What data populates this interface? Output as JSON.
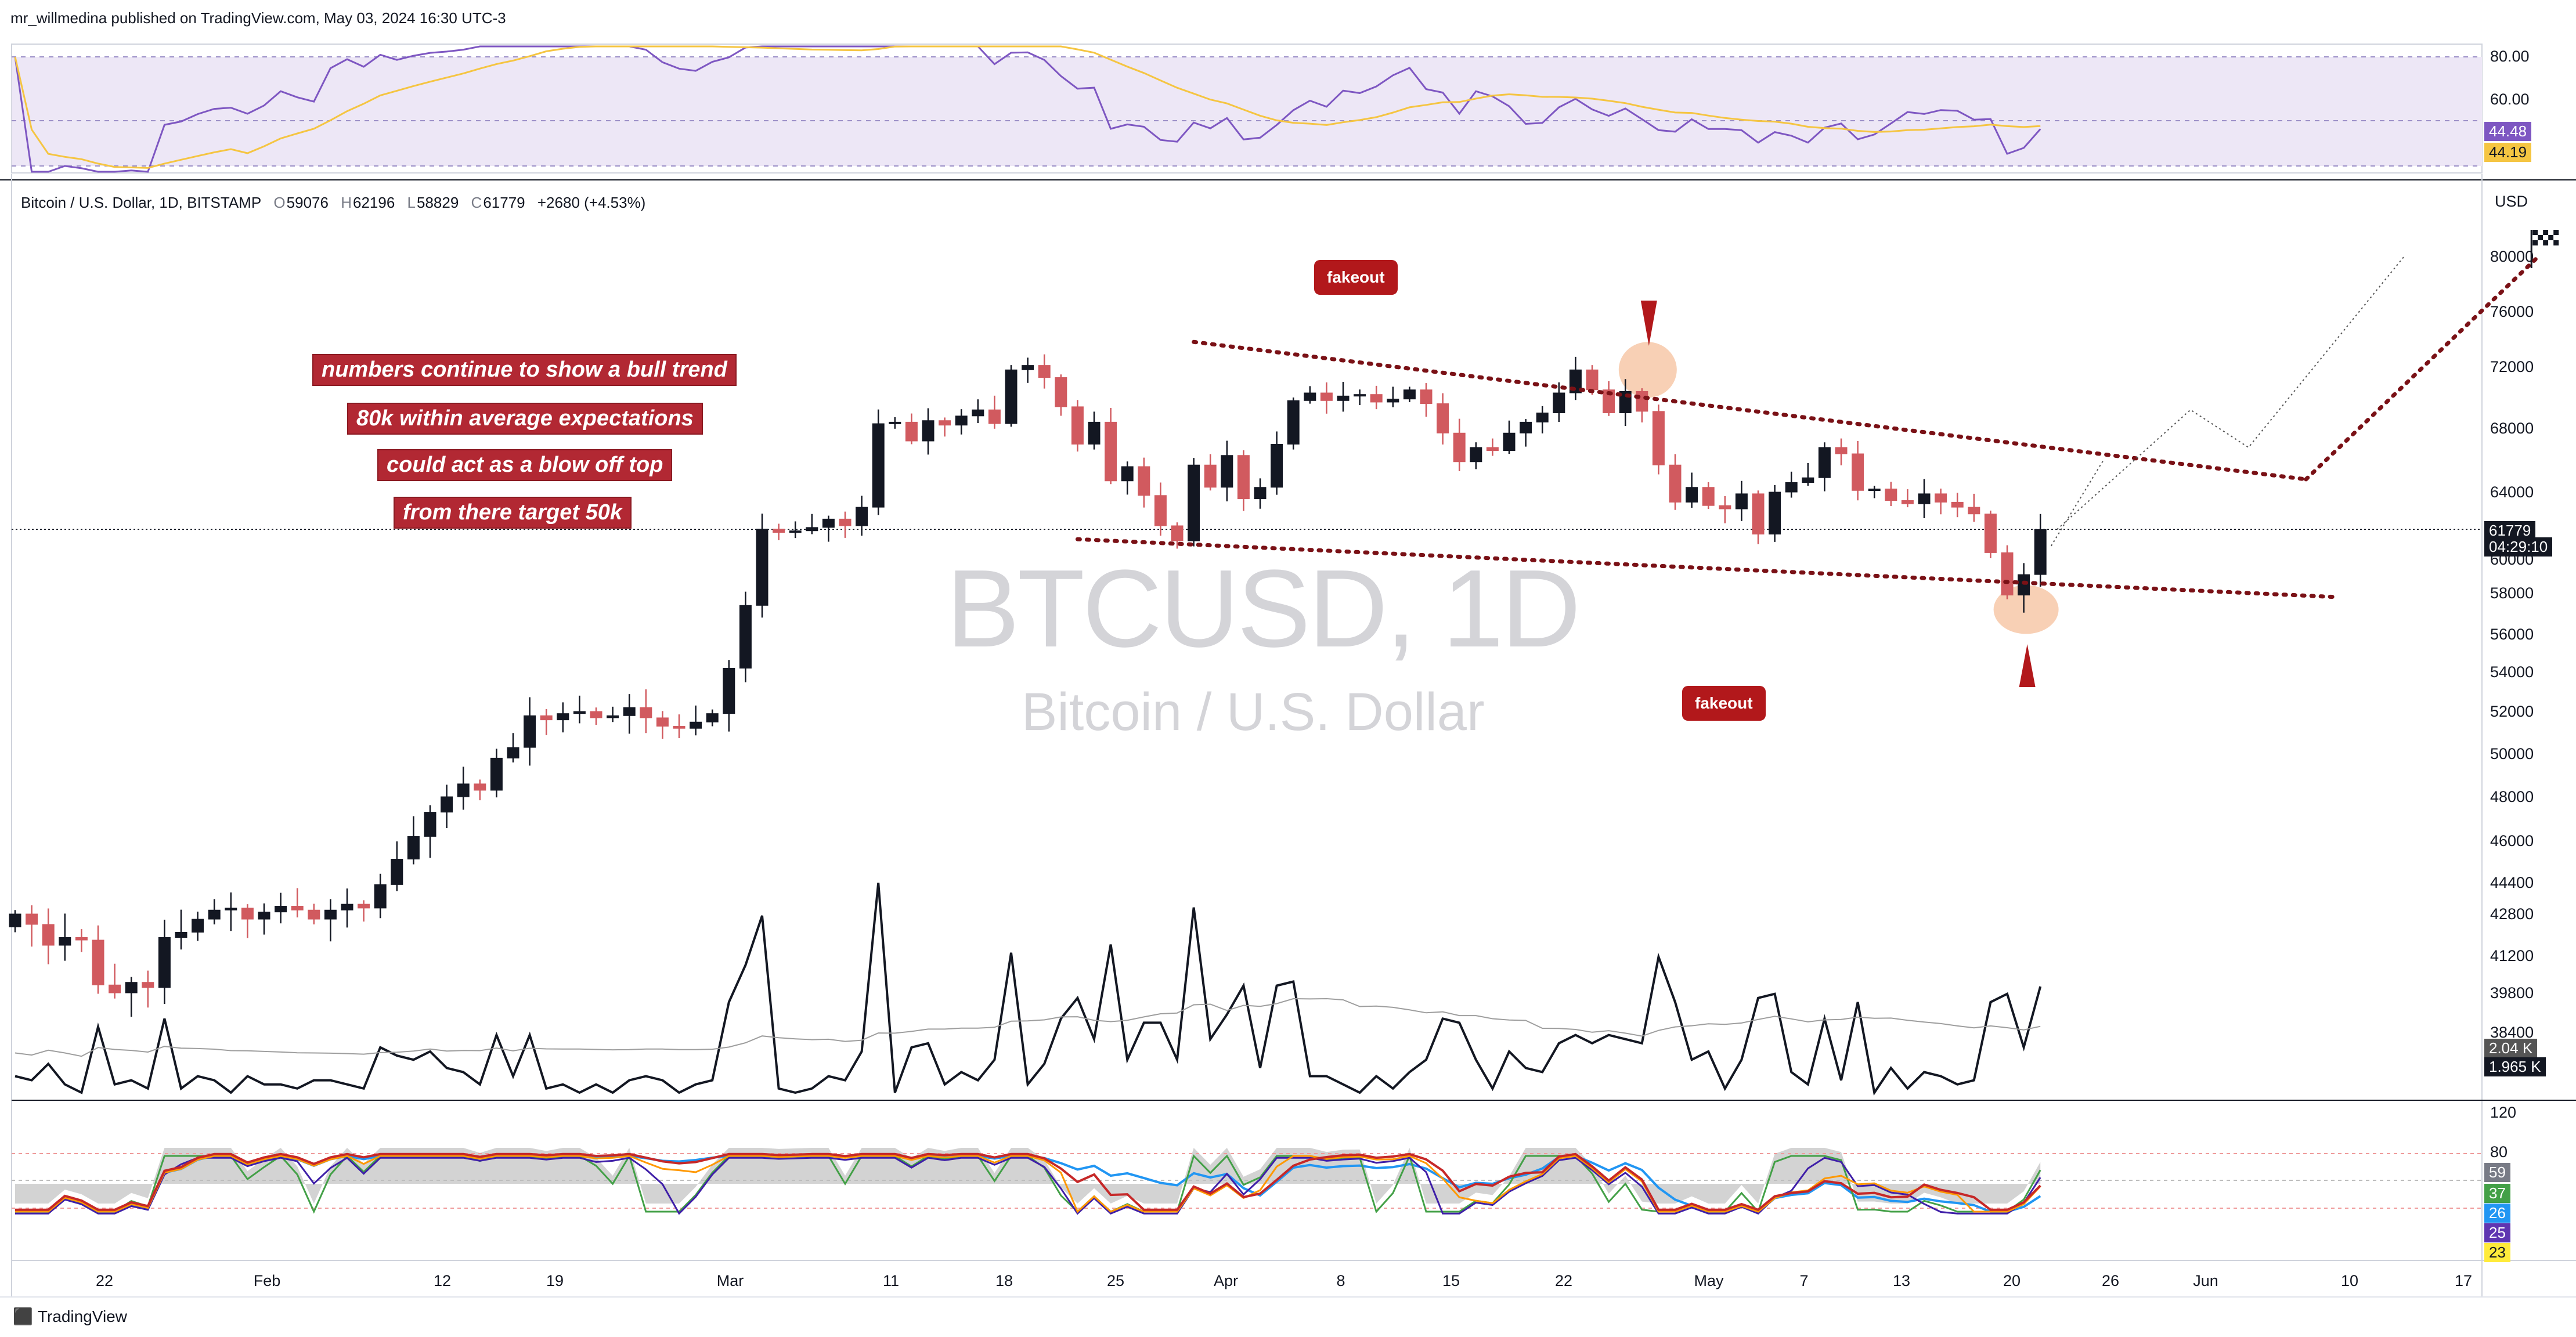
{
  "header": {
    "published_by": "mr_willmedina published on TradingView.com, May 03, 2024 16:30 UTC-3"
  },
  "symbol": {
    "name": "Bitcoin / U.S. Dollar, 1D, BITSTAMP",
    "open_label": "O",
    "open": "59076",
    "high_label": "H",
    "high": "62196",
    "low_label": "L",
    "low": "58829",
    "close_label": "C",
    "close": "61779",
    "change": "+2680 (+4.53%)",
    "currency": "USD"
  },
  "watermark": {
    "ticker": "BTCUSD, 1D",
    "description": "Bitcoin / U.S. Dollar"
  },
  "annotations": {
    "notes": [
      "numbers continue to show a bull trend",
      "80k within average expectations",
      "could act as a blow off top",
      "from there target 50k"
    ],
    "fakeout_top": "fakeout",
    "fakeout_bottom": "fakeout"
  },
  "price_tags": {
    "last_price": "61779",
    "countdown": "04:29:10"
  },
  "rsi_panel": {
    "ticks": [
      "80.00",
      "60.00"
    ],
    "value_rsi": "44.48",
    "value_ma": "44.19",
    "colors": {
      "rsi": "#7e57c2",
      "ma": "#f5c542",
      "band": "#ede7f6"
    }
  },
  "volume_panel": {
    "value_a": "2.04 K",
    "value_b": "1.965 K"
  },
  "oscillator_panel": {
    "ticks": [
      "120",
      "80"
    ],
    "values": [
      "59",
      "37",
      "26",
      "25",
      "23"
    ],
    "value_colors": [
      "#787b86",
      "#43a047",
      "#2196f3",
      "#5e35b1",
      "#ffeb3b"
    ]
  },
  "footer": {
    "brand": "TradingView"
  },
  "chart_data": {
    "type": "candlestick",
    "title": "",
    "y_axis_ticks": [
      80000,
      76000,
      72000,
      68000,
      64000,
      60000,
      58000,
      56000,
      54000,
      52000,
      50000,
      48000,
      46000,
      44400,
      42800,
      41200,
      39800,
      38400
    ],
    "y_axis_labels": [
      "80000",
      "76000",
      "72000",
      "68000",
      "64000",
      "60000",
      "58000",
      "56000",
      "54000",
      "52000",
      "50000",
      "48000",
      "46000",
      "44400",
      "42800",
      "41200",
      "39800",
      "38400"
    ],
    "x_axis_labels": [
      "22",
      "Feb",
      "12",
      "19",
      "Mar",
      "11",
      "18",
      "25",
      "Apr",
      "8",
      "15",
      "22",
      "May",
      "7",
      "13",
      "20",
      "26",
      "Jun",
      "10",
      "17"
    ],
    "candles_close": [
      42800,
      42400,
      41600,
      41900,
      41800,
      40100,
      39800,
      40200,
      40000,
      41900,
      42100,
      42600,
      43000,
      43100,
      42600,
      42900,
      43200,
      43000,
      42600,
      43000,
      43300,
      43100,
      44300,
      45300,
      46200,
      47300,
      48000,
      48600,
      48300,
      49800,
      50300,
      51800,
      51600,
      51900,
      52000,
      51700,
      51800,
      52200,
      51700,
      51300,
      51200,
      51500,
      51900,
      54200,
      57400,
      61800,
      61600,
      61700,
      61900,
      62400,
      62000,
      63100,
      68300,
      68400,
      67200,
      68500,
      68200,
      68800,
      69200,
      68300,
      71800,
      72100,
      71300,
      69400,
      67000,
      68400,
      64700,
      65600,
      63800,
      62000,
      61100,
      65700,
      64300,
      66300,
      63600,
      64300,
      67000,
      69800,
      70300,
      69800,
      70100,
      70200,
      69700,
      69900,
      70500,
      69600,
      67700,
      65900,
      66800,
      66600,
      67700,
      68400,
      69000,
      70300,
      71800,
      70500,
      69000,
      70400,
      69100,
      65700,
      63400,
      64300,
      63200,
      63000,
      63900,
      61500,
      64000,
      64600,
      64900,
      66800,
      66400,
      64100,
      64200,
      63500,
      63300,
      63900,
      63400,
      63100,
      62700,
      60400,
      57900,
      59100,
      61779
    ],
    "resistance_line": {
      "from": [
        "Mar 12",
        73800
      ],
      "to": [
        "May 18",
        64800
      ]
    },
    "support_line": {
      "from": [
        "Mar 5",
        61200
      ],
      "to": [
        "May 20",
        57800
      ]
    },
    "projection": {
      "from": [
        "May 3",
        61779
      ],
      "peak": [
        "Jun 1",
        80000
      ]
    }
  }
}
